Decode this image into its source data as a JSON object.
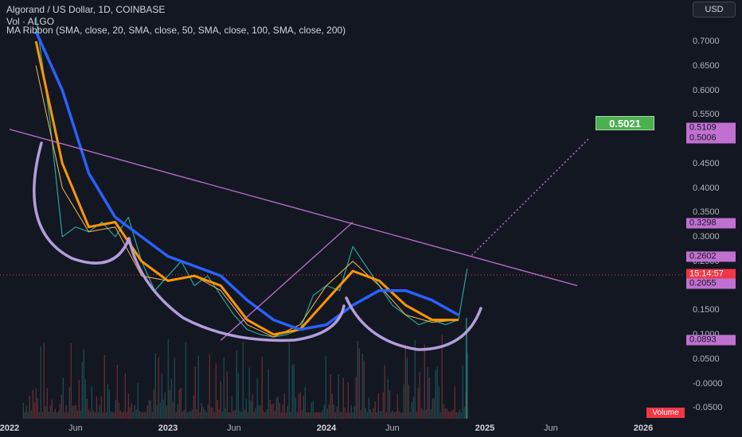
{
  "header": {
    "title_line": "Algorand / US Dollar, 1D, COINBASE",
    "vol_line": "Vol · ALGO",
    "ma_line": "MA Ribbon (SMA, close, 20, SMA, close, 50, SMA, close, 100, SMA, close, 200)"
  },
  "currency_button": "USD",
  "target_label": "0.5021",
  "volume_badge": "Volume",
  "last_price_time": "15:14:57",
  "price_tags": [
    "0.5109",
    "0.5006",
    "0.3298",
    "0.2602",
    "0.2055",
    "0.0893"
  ],
  "colors": {
    "background": "#131722",
    "price_line": "#26a69a",
    "ma20": "#ff9800",
    "ma50": "#ff9800",
    "ma100": "#2962ff",
    "ma200": "#f5b041",
    "trendline": "#c070d0",
    "pattern": "#b39ddb",
    "target": "#4caf50",
    "last_price": "#f23645"
  },
  "chart_data": {
    "type": "line",
    "title": "Algorand / US Dollar, 1D, COINBASE",
    "xlabel": "",
    "ylabel": "",
    "x_ticks": [
      "2022",
      "Jun",
      "2023",
      "Jun",
      "2024",
      "Jun",
      "2025",
      "Jun",
      "2026"
    ],
    "y_ticks": [
      "0.7000",
      "0.6500",
      "0.6000",
      "0.5500",
      "0.5000",
      "0.4500",
      "0.4000",
      "0.3500",
      "0.3000",
      "0.2500",
      "0.2000",
      "0.1500",
      "0.1000",
      "0.0500",
      "-0.0000",
      "-0.0500"
    ],
    "ylim": [
      -0.05,
      0.72
    ],
    "series": [
      {
        "name": "ALGO close",
        "x": [
          "2022-03",
          "2022-04",
          "2022-05",
          "2022-06",
          "2022-07",
          "2022-08",
          "2022-09",
          "2022-10",
          "2022-11",
          "2022-12",
          "2023-01",
          "2023-02",
          "2023-03",
          "2023-04",
          "2023-05",
          "2023-06",
          "2023-07",
          "2023-08",
          "2023-09",
          "2023-10",
          "2023-11",
          "2023-12",
          "2024-01",
          "2024-02",
          "2024-03",
          "2024-04",
          "2024-05",
          "2024-06",
          "2024-07",
          "2024-08",
          "2024-09",
          "2024-10",
          "2024-11",
          "2024-11-21"
        ],
        "values": [
          0.75,
          0.55,
          0.3,
          0.32,
          0.31,
          0.33,
          0.3,
          0.34,
          0.25,
          0.19,
          0.22,
          0.25,
          0.2,
          0.22,
          0.18,
          0.14,
          0.11,
          0.1,
          0.095,
          0.1,
          0.11,
          0.18,
          0.2,
          0.19,
          0.28,
          0.24,
          0.2,
          0.16,
          0.14,
          0.12,
          0.13,
          0.12,
          0.13,
          0.235
        ]
      },
      {
        "name": "SMA 20",
        "x": [
          "2022-03",
          "2022-05",
          "2022-07",
          "2022-09",
          "2022-11",
          "2023-01",
          "2023-03",
          "2023-05",
          "2023-07",
          "2023-09",
          "2023-11",
          "2024-01",
          "2024-03",
          "2024-05",
          "2024-07",
          "2024-09",
          "2024-11"
        ],
        "values": [
          0.65,
          0.4,
          0.31,
          0.32,
          0.22,
          0.21,
          0.22,
          0.19,
          0.12,
          0.095,
          0.12,
          0.2,
          0.25,
          0.2,
          0.14,
          0.125,
          0.13
        ]
      },
      {
        "name": "SMA 50",
        "x": [
          "2022-03",
          "2022-05",
          "2022-07",
          "2022-09",
          "2022-11",
          "2023-01",
          "2023-03",
          "2023-05",
          "2023-07",
          "2023-09",
          "2023-11",
          "2024-01",
          "2024-03",
          "2024-05",
          "2024-07",
          "2024-09",
          "2024-11"
        ],
        "values": [
          0.7,
          0.45,
          0.32,
          0.33,
          0.25,
          0.21,
          0.22,
          0.2,
          0.13,
          0.1,
          0.11,
          0.17,
          0.23,
          0.21,
          0.16,
          0.13,
          0.13
        ]
      },
      {
        "name": "SMA 100",
        "x": [
          "2022-03",
          "2022-05",
          "2022-07",
          "2022-09",
          "2022-11",
          "2023-01",
          "2023-03",
          "2023-05",
          "2023-07",
          "2023-09",
          "2023-11",
          "2024-01",
          "2024-03",
          "2024-05",
          "2024-07",
          "2024-09",
          "2024-11"
        ],
        "values": [
          0.72,
          0.6,
          0.43,
          0.34,
          0.3,
          0.26,
          0.24,
          0.22,
          0.17,
          0.13,
          0.11,
          0.12,
          0.16,
          0.19,
          0.19,
          0.17,
          0.14
        ]
      }
    ],
    "annotations": {
      "descending_trendline": {
        "from": [
          "2022-01",
          0.52
        ],
        "to": [
          "2025-08",
          0.2
        ]
      },
      "projection_target": 0.5021,
      "markers": [
        "0.5109",
        "0.5006",
        "0.3298",
        "0.2602",
        "0.2055",
        "0.0893"
      ]
    },
    "grid": false,
    "legend": "top-left"
  }
}
